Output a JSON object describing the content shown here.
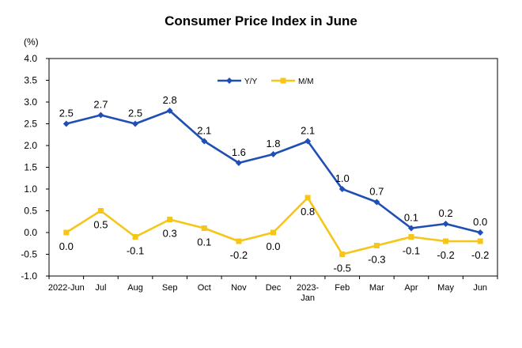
{
  "chart_data": {
    "type": "line",
    "title": "Consumer Price Index in June",
    "unit_label": "(%)",
    "categories": [
      "2022-Jun",
      "Jul",
      "Aug",
      "Sep",
      "Oct",
      "Nov",
      "Dec",
      "2023-\nJan",
      "Feb",
      "Mar",
      "Apr",
      "May",
      "Jun"
    ],
    "ylim": [
      -1.0,
      4.0
    ],
    "yticks": [
      "4.0",
      "3.5",
      "3.0",
      "2.5",
      "2.0",
      "1.5",
      "1.0",
      "0.5",
      "0.0",
      "-0.5",
      "-1.0"
    ],
    "grid": false,
    "legend_position": "top-right",
    "series": [
      {
        "name": "Y/Y",
        "color": "#1f4fb4",
        "marker": "diamond",
        "values": [
          2.5,
          2.7,
          2.5,
          2.8,
          2.1,
          1.6,
          1.8,
          2.1,
          1.0,
          0.7,
          0.1,
          0.2,
          0.0
        ],
        "labels": [
          "2.5",
          "2.7",
          "2.5",
          "2.8",
          "2.1",
          "1.6",
          "1.8",
          "2.1",
          "1.0",
          "0.7",
          "0.1",
          "0.2",
          "0.0"
        ]
      },
      {
        "name": "M/M",
        "color": "#f5c518",
        "marker": "square",
        "values": [
          0.0,
          0.5,
          -0.1,
          0.3,
          0.1,
          -0.2,
          0.0,
          0.8,
          -0.5,
          -0.3,
          -0.1,
          -0.2,
          -0.2
        ],
        "labels": [
          "0.0",
          "0.5",
          "-0.1",
          "0.3",
          "0.1",
          "-0.2",
          "0.0",
          "0.8",
          "-0.5",
          "-0.3",
          "-0.1",
          "-0.2",
          "-0.2"
        ]
      }
    ]
  }
}
